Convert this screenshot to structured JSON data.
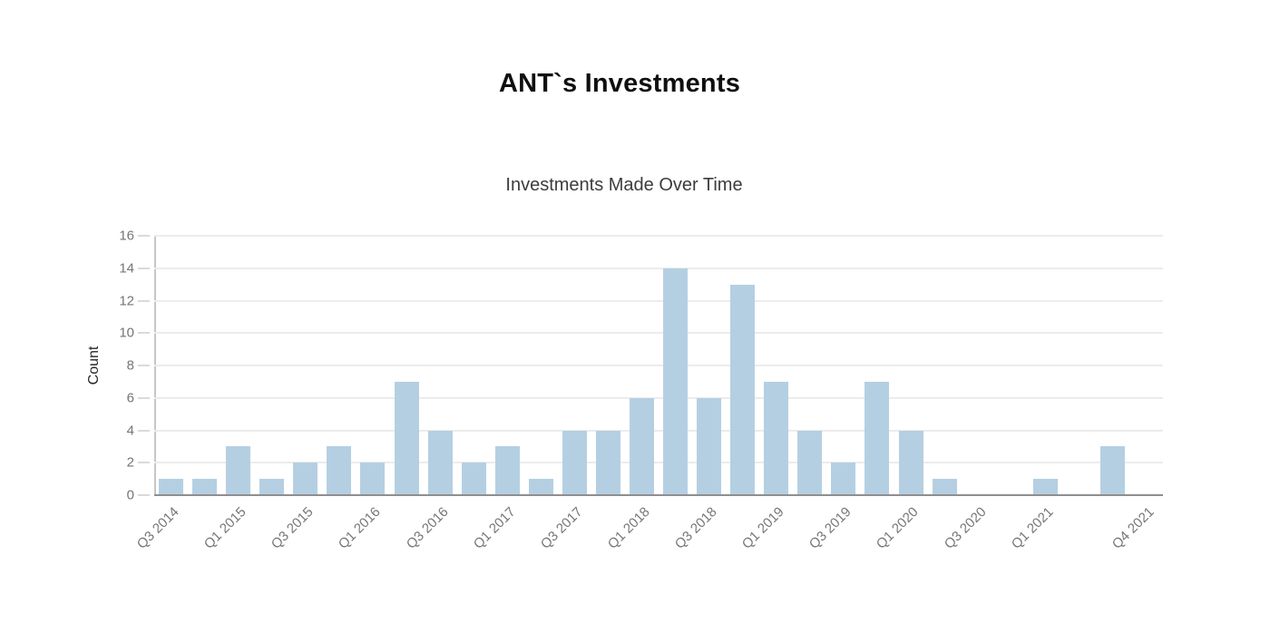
{
  "page": {
    "title": "ANT`s Investments"
  },
  "chart_data": {
    "type": "bar",
    "title": "Investments Made Over Time",
    "xlabel": "",
    "ylabel": "Count",
    "ylim": [
      0,
      16
    ],
    "yticks": [
      0,
      2,
      4,
      6,
      8,
      10,
      12,
      14,
      16
    ],
    "grid": true,
    "legend": "none",
    "x_label_rotation_deg": -45,
    "categories": [
      "Q3 2014",
      "Q4 2014",
      "Q1 2015",
      "Q2 2015",
      "Q3 2015",
      "Q4 2015",
      "Q1 2016",
      "Q2 2016",
      "Q3 2016",
      "Q4 2016",
      "Q1 2017",
      "Q2 2017",
      "Q3 2017",
      "Q4 2017",
      "Q1 2018",
      "Q2 2018",
      "Q3 2018",
      "Q4 2018",
      "Q1 2019",
      "Q2 2019",
      "Q3 2019",
      "Q4 2019",
      "Q1 2020",
      "Q2 2020",
      "Q3 2020",
      "Q4 2020",
      "Q1 2021",
      "Q2 2021",
      "Q3 2021",
      "Q4 2021"
    ],
    "values": [
      1,
      1,
      3,
      1,
      2,
      3,
      2,
      7,
      4,
      2,
      3,
      1,
      4,
      4,
      6,
      14,
      6,
      13,
      7,
      4,
      2,
      7,
      4,
      1,
      0,
      0,
      1,
      0,
      3,
      0
    ],
    "x_ticks": [
      {
        "label": "Q3 2014",
        "slot": 0
      },
      {
        "label": "Q1 2015",
        "slot": 2
      },
      {
        "label": "Q3 2015",
        "slot": 4
      },
      {
        "label": "Q1 2016",
        "slot": 6
      },
      {
        "label": "Q3 2016",
        "slot": 8
      },
      {
        "label": "Q1 2017",
        "slot": 10
      },
      {
        "label": "Q3 2017",
        "slot": 12
      },
      {
        "label": "Q1 2018",
        "slot": 14
      },
      {
        "label": "Q3 2018",
        "slot": 16
      },
      {
        "label": "Q1 2019",
        "slot": 18
      },
      {
        "label": "Q3 2019",
        "slot": 20
      },
      {
        "label": "Q1 2020",
        "slot": 22
      },
      {
        "label": "Q3 2020",
        "slot": 24
      },
      {
        "label": "Q1 2021",
        "slot": 26
      },
      {
        "label": "Q4 2021",
        "slot": 29
      }
    ],
    "colors": {
      "bar": "#b5cfe2",
      "grid": "#ececec",
      "baseline": "#8f8f8f",
      "axis_line": "#c6c6c6",
      "tick_text": "#757575",
      "axis_title_text": "#262626",
      "chart_title_text": "#3c3c3c",
      "page_title_text": "#0f0f0f",
      "background": "#ffffff"
    }
  }
}
